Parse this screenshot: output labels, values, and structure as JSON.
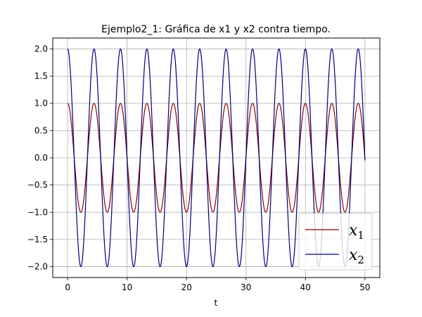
{
  "chart_data": {
    "type": "line",
    "title": "Ejemplo2_1: Gráfica de x1 y x2 contra tiempo.",
    "xlabel": "t",
    "ylabel": "",
    "xlim": [
      -2.5,
      52.5
    ],
    "ylim": [
      -2.2,
      2.2
    ],
    "x_ticks": [
      0,
      10,
      20,
      30,
      40,
      50
    ],
    "y_ticks": [
      2.0,
      1.5,
      1.0,
      0.5,
      0.0,
      -0.5,
      -1.0,
      -1.5,
      -2.0
    ],
    "x_tick_labels": [
      "0",
      "10",
      "20",
      "30",
      "40",
      "50"
    ],
    "y_tick_labels": [
      "2.0",
      "1.5",
      "1.0",
      "0.5",
      "0.0",
      "−0.5",
      "−1.0",
      "−1.5",
      "−2.0"
    ],
    "grid": true,
    "legend_position": "bottom-right",
    "t_range": [
      0,
      50
    ],
    "series": [
      {
        "name": "x1",
        "legend_base": "x",
        "legend_sub": "1",
        "color": "#8b0000",
        "amplitude": 1.0,
        "function": "cos",
        "angular_frequency": 1.4142
      },
      {
        "name": "x2",
        "legend_base": "x",
        "legend_sub": "2",
        "color": "#00007f",
        "amplitude": 2.0,
        "function": "cos",
        "angular_frequency": 1.4142
      }
    ]
  }
}
